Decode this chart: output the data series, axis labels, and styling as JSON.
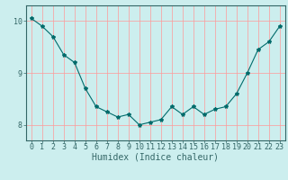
{
  "x": [
    0,
    1,
    2,
    3,
    4,
    5,
    6,
    7,
    8,
    9,
    10,
    11,
    12,
    13,
    14,
    15,
    16,
    17,
    18,
    19,
    20,
    21,
    22,
    23
  ],
  "y": [
    10.05,
    9.9,
    9.7,
    9.35,
    9.2,
    8.7,
    8.35,
    8.25,
    8.15,
    8.2,
    8.0,
    8.05,
    8.1,
    8.35,
    8.2,
    8.35,
    8.2,
    8.3,
    8.35,
    8.6,
    9.0,
    9.45,
    9.6,
    9.9
  ],
  "xlabel": "Humidex (Indice chaleur)",
  "ylabel": "",
  "xlim": [
    -0.5,
    23.5
  ],
  "ylim": [
    7.7,
    10.3
  ],
  "yticks": [
    8,
    9,
    10
  ],
  "xticks": [
    0,
    1,
    2,
    3,
    4,
    5,
    6,
    7,
    8,
    9,
    10,
    11,
    12,
    13,
    14,
    15,
    16,
    17,
    18,
    19,
    20,
    21,
    22,
    23
  ],
  "line_color": "#006b6b",
  "marker": "*",
  "marker_size": 3,
  "bg_color": "#cceeee",
  "grid_color": "#ff9999",
  "axis_color": "#336666",
  "tick_color": "#336666",
  "label_color": "#336666",
  "font_size_xlabel": 7,
  "font_size_tick": 6
}
